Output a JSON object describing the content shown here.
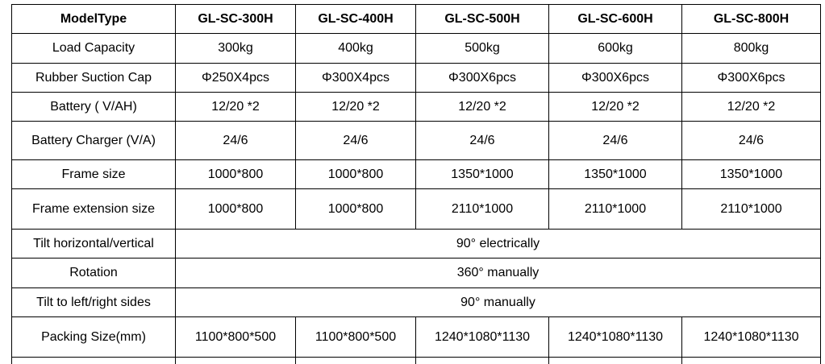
{
  "table": {
    "header": [
      "ModelType",
      "GL-SC-300H",
      "GL-SC-400H",
      "GL-SC-500H",
      "GL-SC-600H",
      "GL-SC-800H"
    ],
    "rows": [
      {
        "label": "Load Capacity",
        "cells": [
          "300kg",
          "400kg",
          "500kg",
          "600kg",
          "800kg"
        ]
      },
      {
        "label": "Rubber Suction Cap",
        "cells": [
          "Φ250X4pcs",
          "Φ300X4pcs",
          "Φ300X6pcs",
          "Φ300X6pcs",
          "Φ300X6pcs"
        ]
      },
      {
        "label": "Battery ( V/AH)",
        "cells": [
          "12/20 *2",
          "12/20 *2",
          "12/20 *2",
          "12/20 *2",
          "12/20 *2"
        ]
      },
      {
        "label": "Battery Charger (V/A)",
        "cells": [
          "24/6",
          "24/6",
          "24/6",
          "24/6",
          "24/6"
        ]
      },
      {
        "label": "Frame size",
        "cells": [
          "1000*800",
          "1000*800",
          "1350*1000",
          "1350*1000",
          "1350*1000"
        ]
      },
      {
        "label": "Frame extension size",
        "cells": [
          "1000*800",
          "1000*800",
          "2110*1000",
          "2110*1000",
          "2110*1000"
        ]
      },
      {
        "label": "Tilt horizontal/vertical",
        "cells": [
          "90°  electrically"
        ]
      },
      {
        "label": "Rotation",
        "cells": [
          "360° manually"
        ]
      },
      {
        "label": "Tilt to left/right sides",
        "cells": [
          "90° manually"
        ]
      },
      {
        "label": "Packing Size(mm)",
        "cells": [
          "1100*800*500",
          "1100*800*500",
          "1240*1080*1130",
          "1240*1080*1130",
          "1240*1080*1130"
        ]
      }
    ]
  }
}
